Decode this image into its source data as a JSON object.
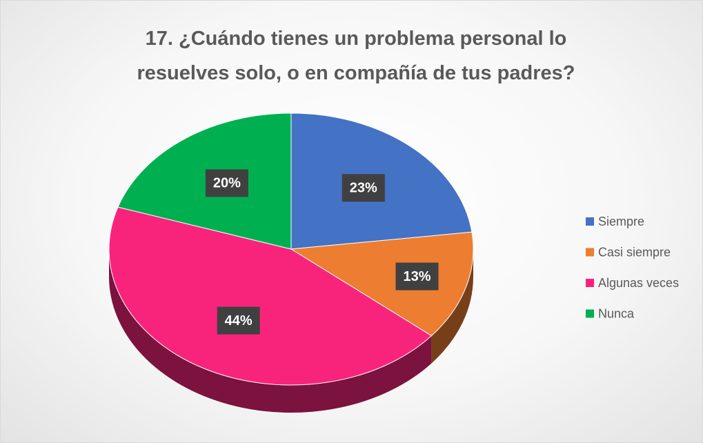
{
  "chart_data": {
    "type": "pie3d",
    "title": "17. ¿Cuándo tienes un problema personal lo resuelves solo, o en compañía de tus padres?",
    "categories": [
      "Siempre",
      "Casi siempre",
      "Algunas veces",
      "Nunca"
    ],
    "values": [
      23,
      13,
      44,
      20
    ],
    "value_labels": [
      "23%",
      "13%",
      "44%",
      "20%"
    ],
    "colors": [
      "#4472c4",
      "#ed7d31",
      "#f8247c",
      "#00b050"
    ],
    "legend": "right"
  }
}
